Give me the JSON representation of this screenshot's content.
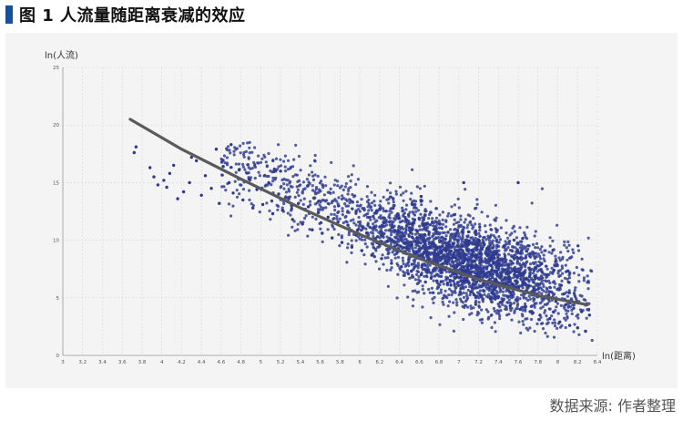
{
  "figure": {
    "title": "图 1  人流量随距离衰减的效应",
    "source": "数据来源: 作者整理"
  },
  "chart_data": {
    "type": "scatter",
    "xlabel": "ln(距离)",
    "ylabel": "ln(人流)",
    "xlim": [
      3.0,
      8.4
    ],
    "ylim": [
      0,
      25
    ],
    "x_ticks": [
      3,
      3.2,
      3.4,
      3.6,
      3.8,
      4,
      4.2,
      4.4,
      4.6,
      4.8,
      5,
      5.2,
      5.4,
      5.6,
      5.8,
      6,
      6.2,
      6.4,
      6.6,
      6.8,
      7,
      7.2,
      7.4,
      7.6,
      7.8,
      8,
      8.2,
      8.4
    ],
    "x_tick_labels": [
      "3",
      "3.2",
      "3.4",
      "3.6",
      "3.8",
      "4",
      "4.2",
      "4.4",
      "4.6",
      "4.8",
      "5",
      "5.2",
      "5.4",
      "5.6",
      "5.8",
      "6",
      "6.2",
      "6.4",
      "6.6",
      "6.8",
      "7",
      "7.2",
      "7.4",
      "7.6",
      "7.8",
      "8",
      "8.2",
      "8.4"
    ],
    "y_ticks": [
      0,
      5,
      10,
      15,
      20,
      25
    ],
    "grid": true,
    "series": [
      {
        "kind": "points",
        "color": "#2e3a8f",
        "points": [
          [
            3.72,
            17.6
          ],
          [
            3.74,
            18.1
          ],
          [
            3.88,
            16.3
          ],
          [
            3.92,
            15.5
          ],
          [
            3.96,
            14.8
          ],
          [
            4.02,
            15.2
          ],
          [
            4.05,
            14.6
          ],
          [
            4.08,
            15.8
          ],
          [
            4.12,
            16.5
          ],
          [
            4.16,
            13.6
          ],
          [
            4.22,
            14.2
          ],
          [
            4.28,
            15.0
          ],
          [
            4.3,
            17.2
          ],
          [
            4.35,
            16.9
          ],
          [
            4.4,
            13.9
          ],
          [
            4.44,
            15.6
          ],
          [
            4.5,
            14.5
          ],
          [
            4.55,
            17.9
          ],
          [
            4.58,
            13.2
          ],
          [
            4.62,
            16.4
          ],
          [
            4.68,
            15.0
          ],
          [
            4.72,
            14.1
          ],
          [
            4.78,
            16.1
          ],
          [
            4.82,
            13.5
          ],
          [
            4.88,
            15.3
          ],
          [
            4.92,
            12.8
          ],
          [
            4.96,
            14.4
          ],
          [
            5.02,
            13.1
          ],
          [
            5.08,
            15.0
          ],
          [
            5.12,
            12.3
          ],
          [
            5.18,
            14.0
          ],
          [
            5.22,
            12.6
          ],
          [
            5.28,
            13.7
          ],
          [
            5.32,
            11.8
          ],
          [
            5.38,
            13.2
          ],
          [
            5.42,
            11.4
          ],
          [
            5.48,
            12.9
          ],
          [
            5.52,
            10.9
          ],
          [
            5.58,
            12.4
          ],
          [
            5.62,
            10.6
          ],
          [
            5.68,
            12.0
          ],
          [
            5.72,
            10.2
          ],
          [
            5.78,
            11.6
          ],
          [
            5.82,
            9.8
          ],
          [
            5.88,
            11.3
          ],
          [
            5.92,
            9.4
          ],
          [
            5.98,
            10.9
          ],
          [
            6.02,
            9.1
          ],
          [
            6.08,
            10.6
          ],
          [
            6.12,
            8.7
          ],
          [
            6.18,
            10.3
          ],
          [
            6.22,
            8.4
          ],
          [
            6.28,
            9.9
          ],
          [
            6.32,
            8.0
          ],
          [
            6.38,
            9.6
          ],
          [
            6.42,
            7.7
          ],
          [
            6.48,
            9.3
          ],
          [
            6.52,
            7.3
          ],
          [
            6.58,
            9.0
          ],
          [
            6.62,
            7.0
          ],
          [
            6.68,
            8.6
          ],
          [
            6.72,
            6.7
          ],
          [
            6.78,
            8.3
          ],
          [
            6.82,
            6.4
          ],
          [
            6.88,
            8.0
          ],
          [
            6.92,
            6.1
          ],
          [
            6.98,
            7.7
          ],
          [
            7.02,
            5.8
          ],
          [
            7.08,
            7.4
          ],
          [
            7.12,
            5.5
          ],
          [
            7.18,
            7.1
          ],
          [
            7.22,
            5.2
          ],
          [
            7.28,
            6.8
          ],
          [
            7.32,
            4.9
          ],
          [
            7.38,
            6.5
          ],
          [
            7.42,
            4.6
          ],
          [
            7.48,
            6.2
          ],
          [
            7.52,
            4.3
          ],
          [
            7.58,
            5.9
          ],
          [
            7.62,
            4.0
          ],
          [
            7.68,
            5.6
          ],
          [
            7.72,
            3.8
          ],
          [
            7.78,
            5.3
          ],
          [
            7.82,
            3.5
          ],
          [
            7.88,
            5.0
          ],
          [
            7.92,
            3.2
          ],
          [
            7.98,
            4.7
          ],
          [
            8.02,
            2.9
          ],
          [
            8.08,
            4.4
          ],
          [
            8.12,
            2.6
          ],
          [
            8.16,
            4.1
          ],
          [
            8.2,
            2.4
          ],
          [
            8.24,
            3.8
          ],
          [
            8.28,
            2.1
          ],
          [
            8.32,
            3.5
          ],
          [
            7.6,
            15.0
          ],
          [
            7.05,
            15.0
          ],
          [
            6.62,
            13.8
          ],
          [
            5.2,
            16.0
          ],
          [
            4.7,
            18.3
          ]
        ]
      },
      {
        "kind": "cloud",
        "color": "#2e3a8f",
        "density_note": "dense point cloud centred near x 7.0–7.6, y 5–10"
      },
      {
        "kind": "trend",
        "color": "#5a5a5a",
        "points": [
          [
            3.68,
            20.5
          ],
          [
            4.2,
            17.9
          ],
          [
            4.8,
            15.3
          ],
          [
            5.4,
            12.8
          ],
          [
            6.0,
            10.5
          ],
          [
            6.6,
            8.4
          ],
          [
            7.2,
            6.6
          ],
          [
            7.8,
            5.2
          ],
          [
            8.3,
            4.4
          ]
        ]
      }
    ]
  }
}
